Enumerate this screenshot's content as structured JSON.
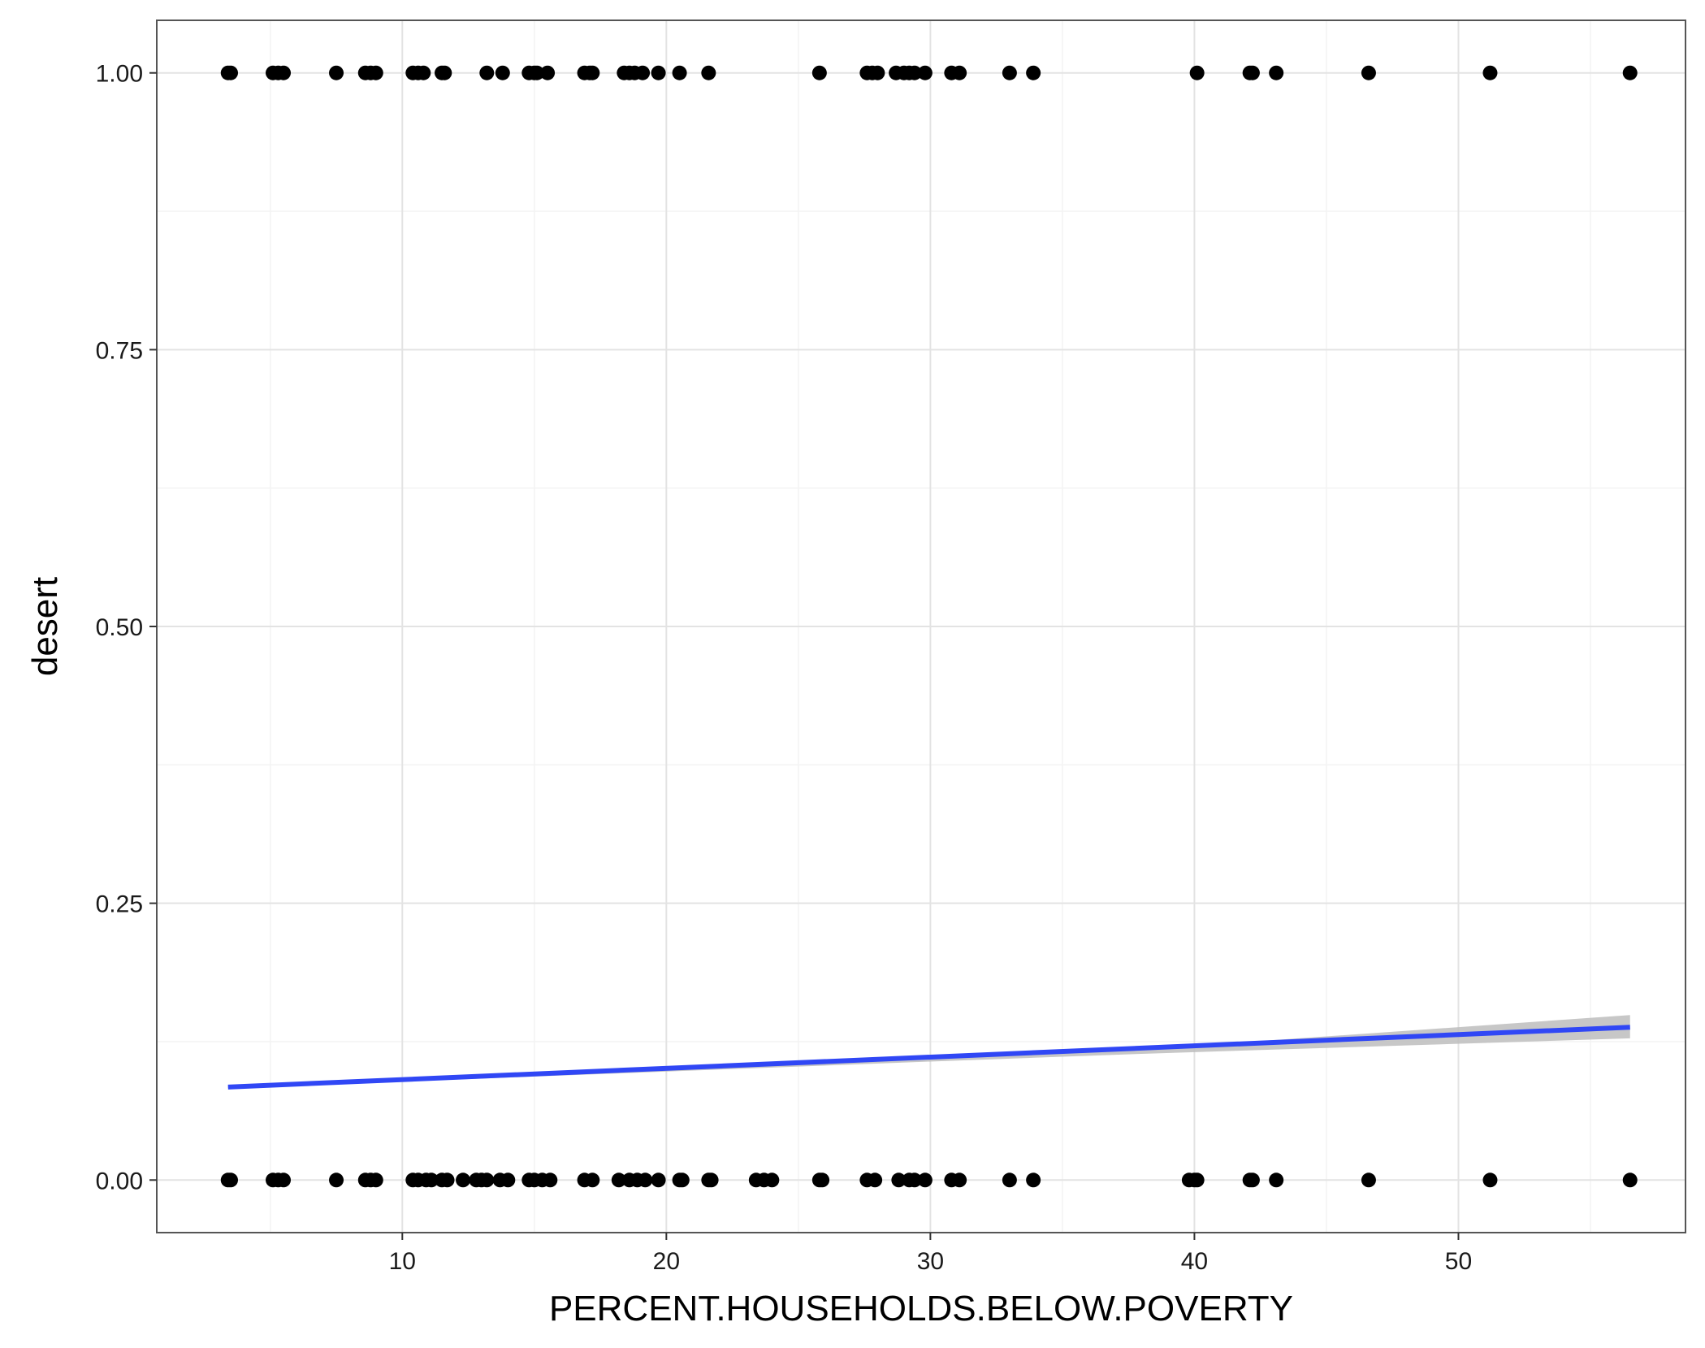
{
  "chart_data": {
    "type": "scatter",
    "title": "",
    "xlabel": "PERCENT.HOUSEHOLDS.BELOW.POVERTY",
    "ylabel": "desert",
    "xlim": [
      0.7,
      58.6
    ],
    "ylim": [
      -0.0475,
      1.0475
    ],
    "x_ticks": [
      10,
      20,
      30,
      40,
      50
    ],
    "y_ticks": [
      0,
      0.25,
      0.5,
      0.75,
      1
    ],
    "x_tick_labels": [
      "10",
      "20",
      "30",
      "40",
      "50"
    ],
    "y_tick_labels": [
      "0.00",
      "0.25",
      "0.50",
      "0.75",
      "1.00"
    ],
    "grid": true,
    "colors": {
      "points": "#000000",
      "fit_line": "#3047f5",
      "confidence_band": "#bdbdbd",
      "grid_major": "#e3e3e3",
      "grid_minor": "#f3f3f3",
      "panel_border": "#555555"
    },
    "series": [
      {
        "type": "scatter",
        "points_y1_x": [
          3.4,
          3.5,
          5.1,
          5.3,
          5.5,
          7.5,
          8.6,
          8.8,
          9.0,
          10.4,
          10.6,
          10.8,
          11.5,
          11.6,
          13.2,
          13.8,
          14.8,
          15.0,
          15.1,
          15.5,
          16.9,
          17.1,
          17.2,
          18.4,
          18.6,
          18.8,
          19.1,
          19.7,
          20.5,
          21.6,
          25.8,
          27.6,
          27.8,
          28.0,
          28.7,
          29.0,
          29.2,
          29.4,
          29.8,
          30.8,
          31.1,
          33.0,
          33.9,
          40.1,
          42.1,
          42.2,
          43.1,
          46.6,
          51.2,
          56.5
        ],
        "points_y0_x": [
          3.4,
          3.5,
          5.1,
          5.3,
          5.5,
          7.5,
          8.6,
          8.8,
          9.0,
          10.4,
          10.6,
          10.9,
          11.1,
          11.5,
          11.7,
          12.3,
          12.8,
          13.0,
          13.2,
          13.7,
          14.0,
          14.8,
          15.0,
          15.3,
          15.6,
          16.9,
          17.2,
          18.2,
          18.6,
          18.9,
          19.2,
          19.7,
          20.5,
          20.6,
          21.6,
          21.7,
          23.4,
          23.7,
          24.0,
          25.8,
          25.9,
          27.6,
          27.9,
          28.8,
          29.2,
          29.4,
          29.8,
          30.8,
          31.1,
          33.0,
          33.9,
          39.8,
          40.0,
          40.1,
          42.1,
          42.2,
          43.1,
          46.6,
          51.2,
          56.5
        ]
      },
      {
        "type": "line",
        "x": [
          3.4,
          56.5
        ],
        "y": [
          0.084,
          0.138
        ]
      },
      {
        "type": "area",
        "x": [
          3.4,
          30,
          38,
          56.5
        ],
        "y_lower": [
          0.083,
          0.107,
          0.114,
          0.128
        ],
        "y_upper": [
          0.085,
          0.109,
          0.118,
          0.149
        ]
      }
    ]
  }
}
